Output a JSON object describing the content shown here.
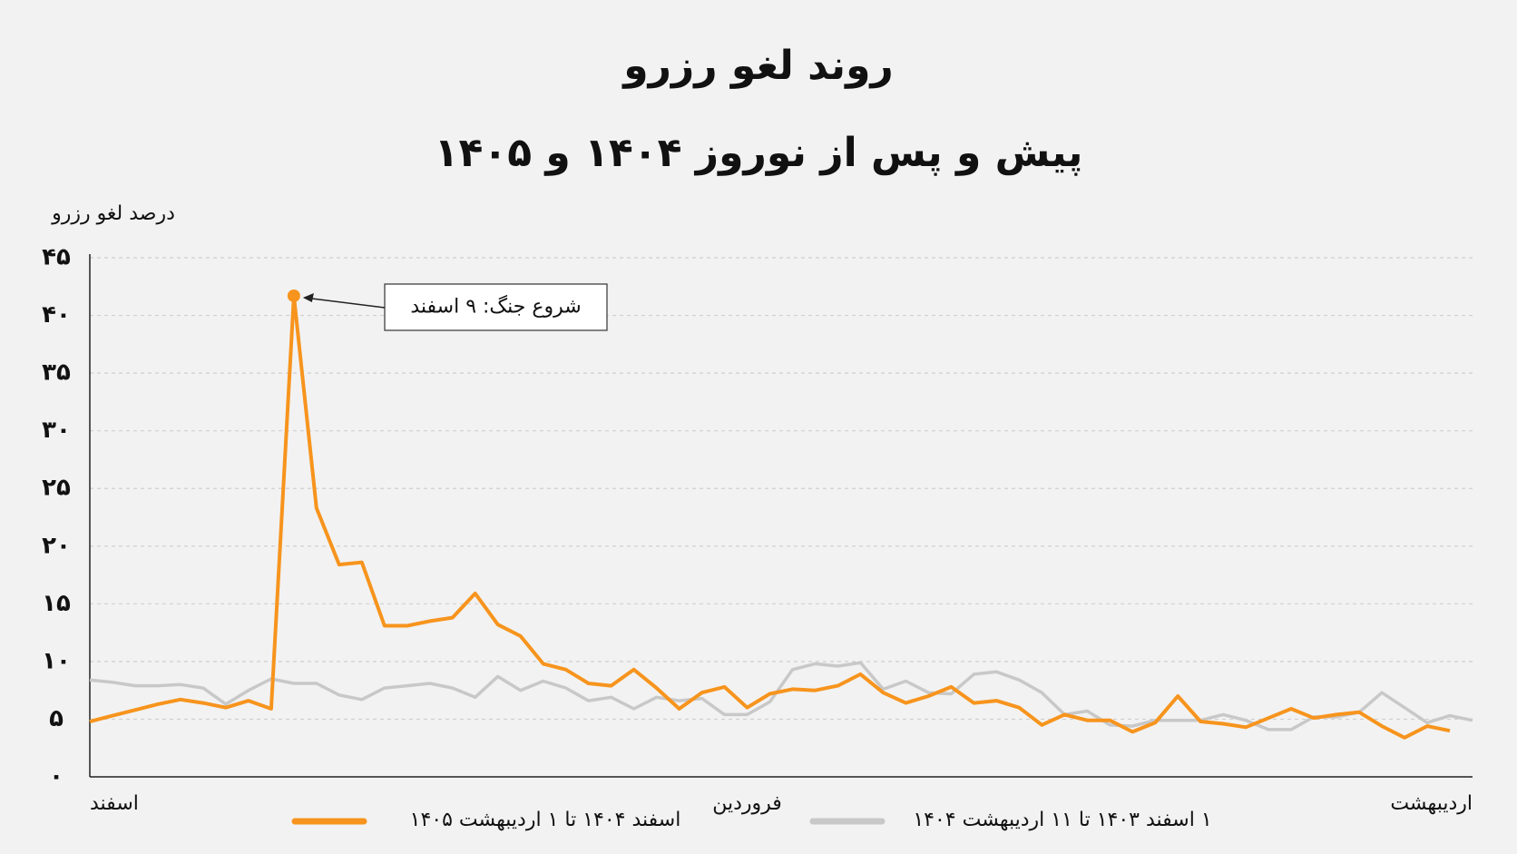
{
  "chart_data": {
    "type": "line",
    "title": "روند لغو رزرو",
    "subtitle": "پیش و پس از نوروز ۱۴۰۴ و ۱۴۰۵",
    "y_label": "درصد لغو رزرو",
    "annotation": "شروع جنگ: ۹ اسفند",
    "categories": [
      "اسفند",
      null,
      null,
      null,
      null,
      null,
      null,
      null,
      null,
      null,
      null,
      null,
      null,
      null,
      null,
      null,
      null,
      null,
      null,
      null,
      null,
      null,
      null,
      null,
      null,
      null,
      null,
      null,
      null,
      "فروردین",
      null,
      null,
      null,
      null,
      null,
      null,
      null,
      null,
      null,
      null,
      null,
      null,
      null,
      null,
      null,
      null,
      null,
      null,
      null,
      null,
      null,
      null,
      null,
      null,
      null,
      null,
      null,
      null,
      null,
      null,
      null,
      "اردیبهشت"
    ],
    "series": [
      {
        "name": "اسفند ۱۴۰۴ تا ۱ اردیبهشت ۱۴۰۵",
        "color": "#f7941d",
        "values": [
          4.8,
          5.3,
          5.8,
          6.3,
          6.7,
          6.4,
          6.0,
          6.6,
          5.9,
          41.7,
          23.3,
          18.4,
          18.6,
          13.1,
          13.1,
          13.5,
          13.8,
          15.9,
          13.2,
          12.2,
          9.8,
          9.3,
          8.1,
          7.9,
          9.3,
          7.7,
          5.9,
          7.3,
          7.8,
          6.0,
          7.2,
          7.6,
          7.5,
          7.9,
          8.9,
          7.3,
          6.4,
          7.0,
          7.8,
          6.4,
          6.6,
          6.0,
          4.5,
          5.4,
          4.9,
          4.9,
          3.9,
          4.7,
          7.0,
          4.8,
          4.6,
          4.3,
          5.1,
          5.9,
          5.1,
          5.4,
          5.6,
          4.4,
          3.4,
          4.4,
          4.0,
          null
        ]
      },
      {
        "name": "۱ اسفند ۱۴۰۳ تا ۱۱ اردیبهشت ۱۴۰۴",
        "color": "#c8c8c8",
        "values": [
          8.4,
          8.2,
          7.9,
          7.9,
          8.0,
          7.7,
          6.3,
          7.5,
          8.5,
          8.1,
          8.1,
          7.1,
          6.7,
          7.7,
          7.9,
          8.1,
          7.7,
          6.9,
          8.7,
          7.5,
          8.3,
          7.7,
          6.6,
          6.9,
          5.9,
          6.9,
          6.6,
          6.8,
          5.4,
          5.4,
          6.5,
          9.3,
          9.8,
          9.6,
          9.9,
          7.6,
          8.3,
          7.3,
          7.2,
          8.9,
          9.1,
          8.4,
          7.3,
          5.4,
          5.7,
          4.5,
          4.4,
          4.9,
          4.9,
          4.9,
          5.4,
          4.9,
          4.1,
          4.1,
          5.2,
          5.2,
          5.6,
          7.3,
          6.0,
          4.7,
          5.3,
          4.9
        ]
      }
    ],
    "ylim": [
      0,
      45
    ],
    "yticks": [
      {
        "value": 0,
        "label": "۰"
      },
      {
        "value": 5,
        "label": "۵"
      },
      {
        "value": 10,
        "label": "۱۰"
      },
      {
        "value": 15,
        "label": "۱۵"
      },
      {
        "value": 20,
        "label": "۲۰"
      },
      {
        "value": 25,
        "label": "۲۵"
      },
      {
        "value": 30,
        "label": "۳۰"
      },
      {
        "value": 35,
        "label": "۳۵"
      },
      {
        "value": 40,
        "label": "۴۰"
      },
      {
        "value": 45,
        "label": "۴۵"
      }
    ],
    "grid": true
  }
}
